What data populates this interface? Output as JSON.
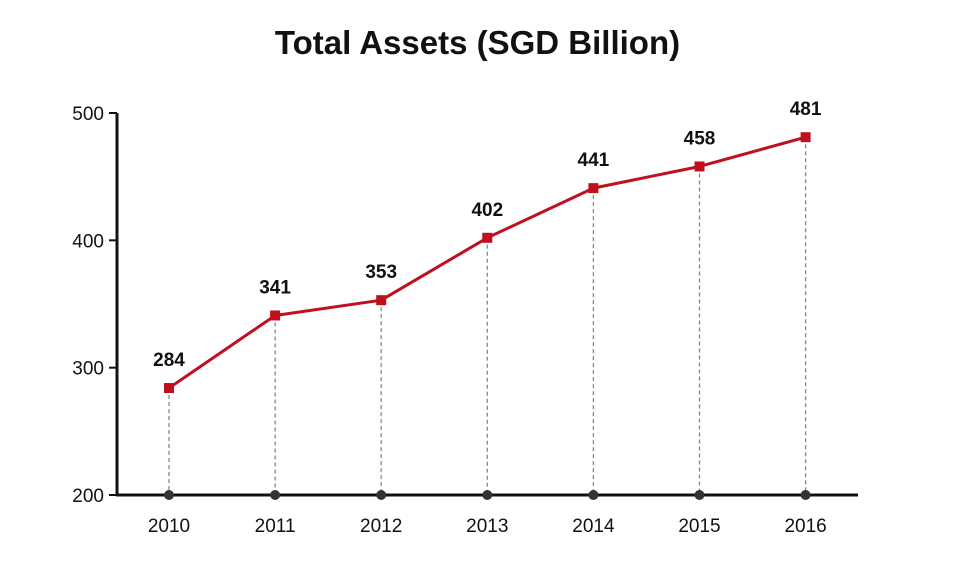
{
  "chart_data": {
    "type": "line",
    "title": "Total Assets (SGD Billion)",
    "xlabel": "",
    "ylabel": "",
    "categories": [
      "2010",
      "2011",
      "2012",
      "2013",
      "2014",
      "2015",
      "2016"
    ],
    "series": [
      {
        "values": [
          284,
          341,
          353,
          402,
          441,
          458,
          481
        ]
      }
    ],
    "data_labels": [
      "284",
      "341",
      "353",
      "402",
      "441",
      "458",
      "481"
    ],
    "ylim": [
      200,
      500
    ],
    "yticks": [
      "200",
      "300",
      "400",
      "500"
    ],
    "grid": false,
    "legend": "none",
    "colors": {
      "line": "#c0101e",
      "marker": "#c0101e",
      "axis": "#111111",
      "dropline": "#888888",
      "base_dot": "#333333"
    }
  }
}
